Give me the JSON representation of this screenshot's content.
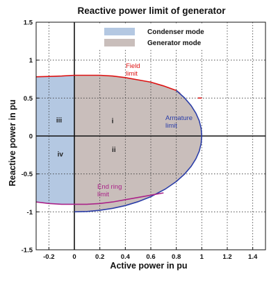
{
  "chart_data": {
    "type": "area",
    "title": "Reactive power limit of  generator",
    "xlabel": "Active power in pu",
    "ylabel": "Reactive power in pu",
    "xlim": [
      -0.3,
      1.5
    ],
    "ylim": [
      -1.5,
      1.5
    ],
    "xticks": [
      -0.2,
      0,
      0.2,
      0.4,
      0.6,
      0.8,
      1,
      1.2,
      1.4
    ],
    "xtick_labels": [
      "-0.2",
      "0",
      "0.2",
      "0.4",
      "0.6",
      "0.8",
      "1",
      "1.2",
      "1.4"
    ],
    "yticks": [
      -1.5,
      -1,
      -0.5,
      0,
      0.5,
      1,
      1.5
    ],
    "ytick_labels": [
      "-1.5",
      "-1",
      "-0.5",
      "0",
      "0.5",
      "1",
      "1.5"
    ],
    "grid": true,
    "legend_position": "top-center",
    "series": [
      {
        "name": "Condenser mode",
        "color": "#b4c8e2",
        "x_range": [
          -0.3,
          0
        ],
        "upper": [
          [
            -0.3,
            0.78
          ],
          [
            -0.2,
            0.785
          ],
          [
            -0.1,
            0.79
          ],
          [
            0,
            0.8
          ]
        ],
        "lower": [
          [
            -0.3,
            -0.87
          ],
          [
            -0.2,
            -0.89
          ],
          [
            -0.1,
            -0.9
          ],
          [
            0,
            -0.9
          ]
        ]
      },
      {
        "name": "Generator mode",
        "color": "#c9bebb",
        "upper": [
          [
            0,
            0.8
          ],
          [
            0.1,
            0.8
          ],
          [
            0.2,
            0.8
          ],
          [
            0.3,
            0.79
          ],
          [
            0.4,
            0.77
          ],
          [
            0.5,
            0.74
          ],
          [
            0.6,
            0.71
          ],
          [
            0.7,
            0.66
          ],
          [
            0.8,
            0.6
          ]
        ],
        "lower": [
          [
            0,
            -0.9
          ],
          [
            0.1,
            -0.9
          ],
          [
            0.2,
            -0.89
          ],
          [
            0.3,
            -0.87
          ],
          [
            0.4,
            -0.84
          ],
          [
            0.5,
            -0.81
          ],
          [
            0.6,
            -0.78
          ],
          [
            0.7,
            -0.75
          ]
        ]
      }
    ],
    "curves": [
      {
        "label": "Field\nlimit",
        "color": "#dd1111",
        "points": [
          [
            -0.3,
            0.78
          ],
          [
            -0.2,
            0.785
          ],
          [
            -0.1,
            0.79
          ],
          [
            0,
            0.8
          ],
          [
            0.1,
            0.8
          ],
          [
            0.2,
            0.8
          ],
          [
            0.3,
            0.79
          ],
          [
            0.4,
            0.77
          ],
          [
            0.5,
            0.74
          ],
          [
            0.6,
            0.71
          ],
          [
            0.7,
            0.66
          ],
          [
            0.8,
            0.6
          ],
          [
            0.83,
            0.56
          ]
        ],
        "extra_segment": [
          [
            0.97,
            0.5
          ],
          [
            1.0,
            0.5
          ]
        ]
      },
      {
        "label": "Armature\nlimit",
        "color": "#2a3da8",
        "points": [
          [
            0.8,
            0.6
          ],
          [
            0.866,
            0.5
          ],
          [
            0.917,
            0.4
          ],
          [
            0.954,
            0.3
          ],
          [
            0.98,
            0.2
          ],
          [
            0.995,
            0.1
          ],
          [
            1.0,
            0
          ],
          [
            0.995,
            -0.1
          ],
          [
            0.98,
            -0.2
          ],
          [
            0.954,
            -0.3
          ],
          [
            0.917,
            -0.4
          ],
          [
            0.866,
            -0.5
          ],
          [
            0.8,
            -0.6
          ],
          [
            0.714,
            -0.7
          ],
          [
            0.6,
            -0.8
          ],
          [
            0.5,
            -0.866
          ],
          [
            0.4,
            -0.917
          ],
          [
            0.3,
            -0.954
          ],
          [
            0.2,
            -0.98
          ],
          [
            0.1,
            -0.995
          ],
          [
            0,
            -1.0
          ]
        ]
      },
      {
        "label": "End ring\nlimit",
        "color": "#aa2288",
        "points": [
          [
            -0.3,
            -0.87
          ],
          [
            -0.2,
            -0.89
          ],
          [
            -0.1,
            -0.9
          ],
          [
            0,
            -0.9
          ],
          [
            0.1,
            -0.9
          ],
          [
            0.2,
            -0.89
          ],
          [
            0.3,
            -0.87
          ],
          [
            0.4,
            -0.84
          ],
          [
            0.5,
            -0.81
          ],
          [
            0.6,
            -0.78
          ],
          [
            0.7,
            -0.75
          ]
        ]
      }
    ],
    "regions": [
      {
        "label": "i",
        "x": 0.3,
        "y": 0.2
      },
      {
        "label": "ii",
        "x": 0.31,
        "y": -0.18
      },
      {
        "label": "iii",
        "x": -0.12,
        "y": 0.21
      },
      {
        "label": "iv",
        "x": -0.11,
        "y": -0.24
      }
    ]
  }
}
